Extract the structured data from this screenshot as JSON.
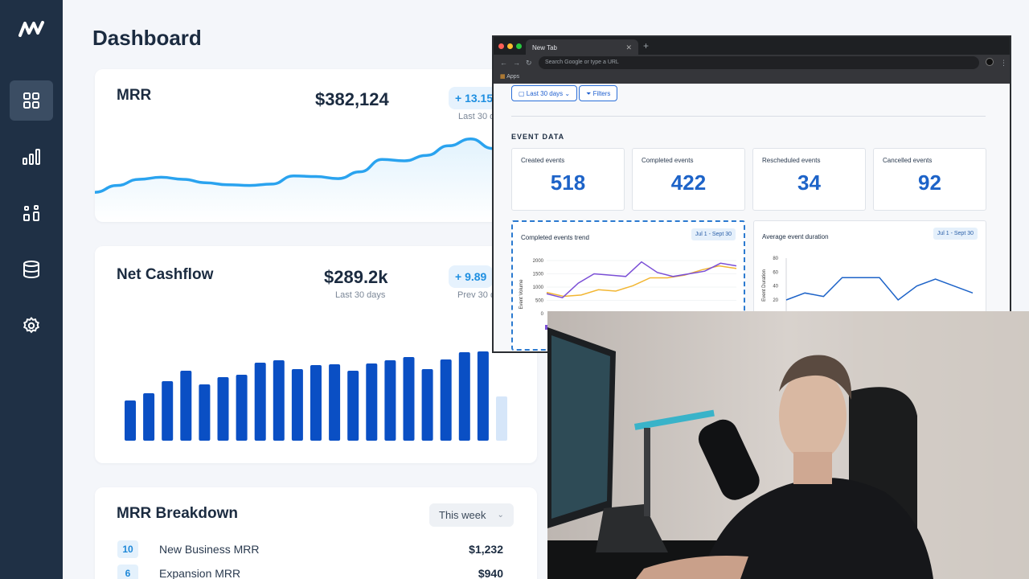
{
  "app": {
    "page_title": "Dashboard"
  },
  "sidebar": {
    "logo": "brand-logo",
    "items": [
      {
        "name": "dashboard",
        "icon": "grid-icon",
        "active": true
      },
      {
        "name": "analytics",
        "icon": "bar-chart-icon",
        "active": false
      },
      {
        "name": "reports",
        "icon": "blocks-icon",
        "active": false
      },
      {
        "name": "database",
        "icon": "database-icon",
        "active": false
      },
      {
        "name": "settings",
        "icon": "gear-icon",
        "active": false
      }
    ]
  },
  "mrr_card": {
    "title": "MRR",
    "value": "$382,124",
    "change": "+ 13.15",
    "period": "Last 30 d"
  },
  "cashflow_card": {
    "title": "Net Cashflow",
    "value": "$289.2k",
    "value_sub": "Last 30 days",
    "change": "+ 9.89",
    "period": "Prev 30 d"
  },
  "breakdown_card": {
    "title": "MRR Breakdown",
    "range": "This week",
    "rows": [
      {
        "count": "10",
        "label": "New Business MRR",
        "amount": "$1,232"
      },
      {
        "count": "6",
        "label": "Expansion MRR",
        "amount": "$940"
      }
    ]
  },
  "browser": {
    "tab_title": "New Tab",
    "omnibox_placeholder": "Search Google or type a URL",
    "bookmarks_apps": "Apps",
    "filter_range": "Last 30 days",
    "filter_button": "Filters",
    "section_title": "EVENT DATA",
    "event_cards": [
      {
        "label": "Created events",
        "value": "518"
      },
      {
        "label": "Completed events",
        "value": "422"
      },
      {
        "label": "Rescheduled events",
        "value": "34"
      },
      {
        "label": "Cancelled events",
        "value": "92"
      }
    ],
    "trend_chart": {
      "title": "Completed events trend",
      "date_range": "Jul 1 - Sept 30",
      "ylabel": "Event Volume",
      "yticks": [
        "2000",
        "1500",
        "1000",
        "500",
        "0"
      ]
    },
    "duration_chart": {
      "title": "Average event duration",
      "date_range": "Jul 1 - Sept 30",
      "ylabel": "Event Duration",
      "yticks": [
        "80",
        "60",
        "40",
        "20"
      ]
    }
  },
  "colors": {
    "sidebar": "#1f3045",
    "accent": "#1e8fe1",
    "bar": "#0a4fc4",
    "line": "#2aa3ef",
    "event_number": "#1d63c8"
  },
  "chart_data": [
    {
      "type": "area",
      "title": "MRR",
      "series": [
        {
          "values": [
            14,
            24,
            33,
            36,
            33,
            28,
            25,
            24,
            26,
            38,
            37,
            34,
            44,
            62,
            60,
            68,
            82,
            92,
            78,
            93,
            87
          ]
        }
      ]
    },
    {
      "type": "bar",
      "title": "Net Cashflow",
      "series": [
        {
          "values": [
            50,
            59,
            74,
            87,
            70,
            79,
            82,
            97,
            100,
            89,
            94,
            95,
            87,
            96,
            100,
            104,
            89,
            101,
            110,
            111,
            55
          ]
        }
      ]
    },
    {
      "type": "line",
      "title": "Completed events trend",
      "ylabel": "Event Volume",
      "ylim": [
        0,
        2000
      ],
      "series": [
        {
          "values": [
            800,
            650,
            700,
            900,
            850,
            1050,
            1350,
            1350,
            1450,
            1650,
            1800,
            1700
          ]
        },
        {
          "values": [
            750,
            600,
            1150,
            1500,
            1450,
            1400,
            1950,
            1550,
            1400,
            1500,
            1600,
            1900,
            1800
          ]
        }
      ]
    },
    {
      "type": "line",
      "title": "Average event duration",
      "ylabel": "Event Duration",
      "ylim": [
        20,
        80
      ],
      "series": [
        {
          "values": [
            20,
            30,
            25,
            52,
            52,
            52,
            20,
            40,
            50,
            40,
            30
          ]
        }
      ]
    }
  ]
}
